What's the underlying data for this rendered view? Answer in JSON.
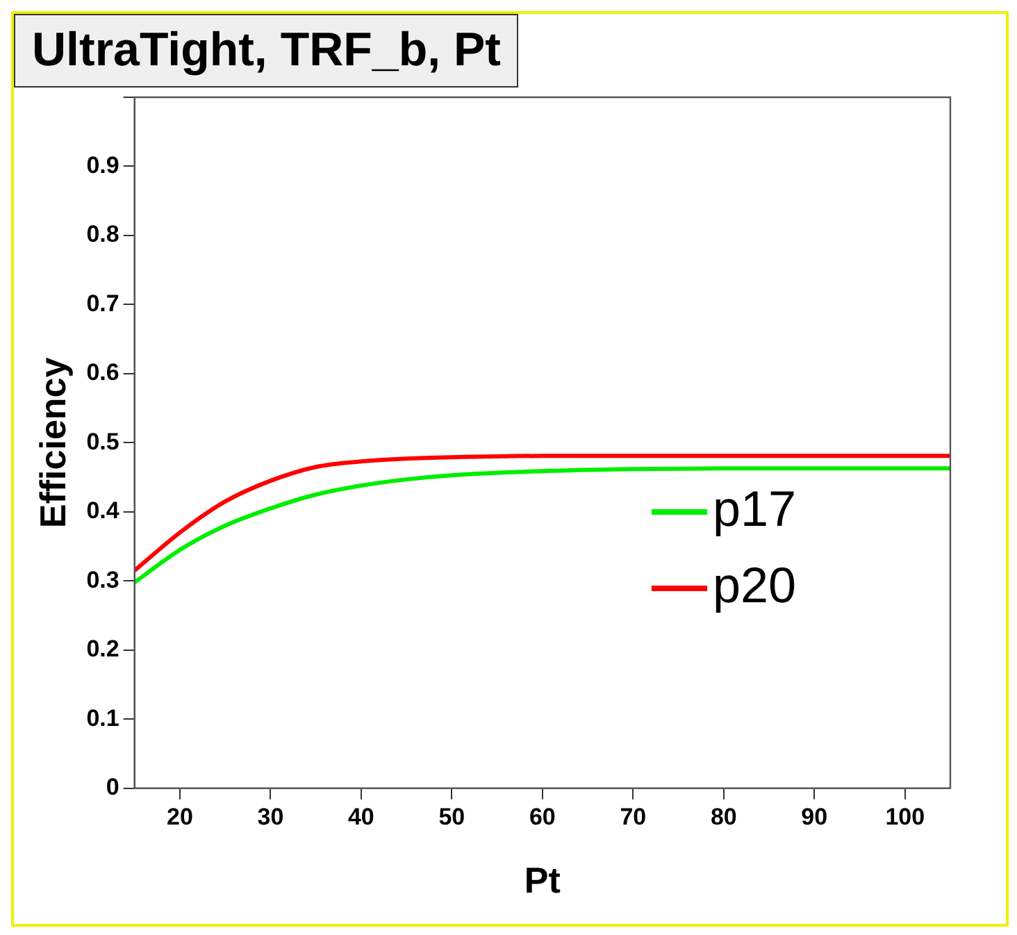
{
  "chart_data": {
    "type": "line",
    "title": "UltraTight, TRF_b, Pt",
    "xlabel": "Pt",
    "ylabel": "Efficiency",
    "xlim": [
      15,
      105
    ],
    "xticks": [
      20,
      30,
      40,
      50,
      60,
      70,
      80,
      90,
      100
    ],
    "ylim": [
      0,
      1
    ],
    "yticks": [
      0,
      0.1,
      0.2,
      0.3,
      0.4,
      0.5,
      0.6,
      0.7,
      0.8,
      0.9,
      {
        "value": 1,
        "label": null
      }
    ],
    "grid": false,
    "legend": "right",
    "marker": "none",
    "line_style": "solid",
    "series": [
      {
        "name": "p17",
        "color": "#00ee00",
        "x": [
          15,
          20,
          25,
          30,
          35,
          40,
          45,
          50,
          60,
          70,
          80,
          105
        ],
        "values": [
          0.298,
          0.345,
          0.38,
          0.405,
          0.425,
          0.438,
          0.447,
          0.453,
          0.459,
          0.462,
          0.463,
          0.463
        ]
      },
      {
        "name": "p20",
        "color": "#ff0000",
        "x": [
          15,
          20,
          25,
          30,
          35,
          40,
          45,
          50,
          60,
          70,
          80,
          105
        ],
        "values": [
          0.315,
          0.37,
          0.415,
          0.445,
          0.465,
          0.473,
          0.477,
          0.479,
          0.481,
          0.481,
          0.481,
          0.481
        ]
      }
    ]
  }
}
